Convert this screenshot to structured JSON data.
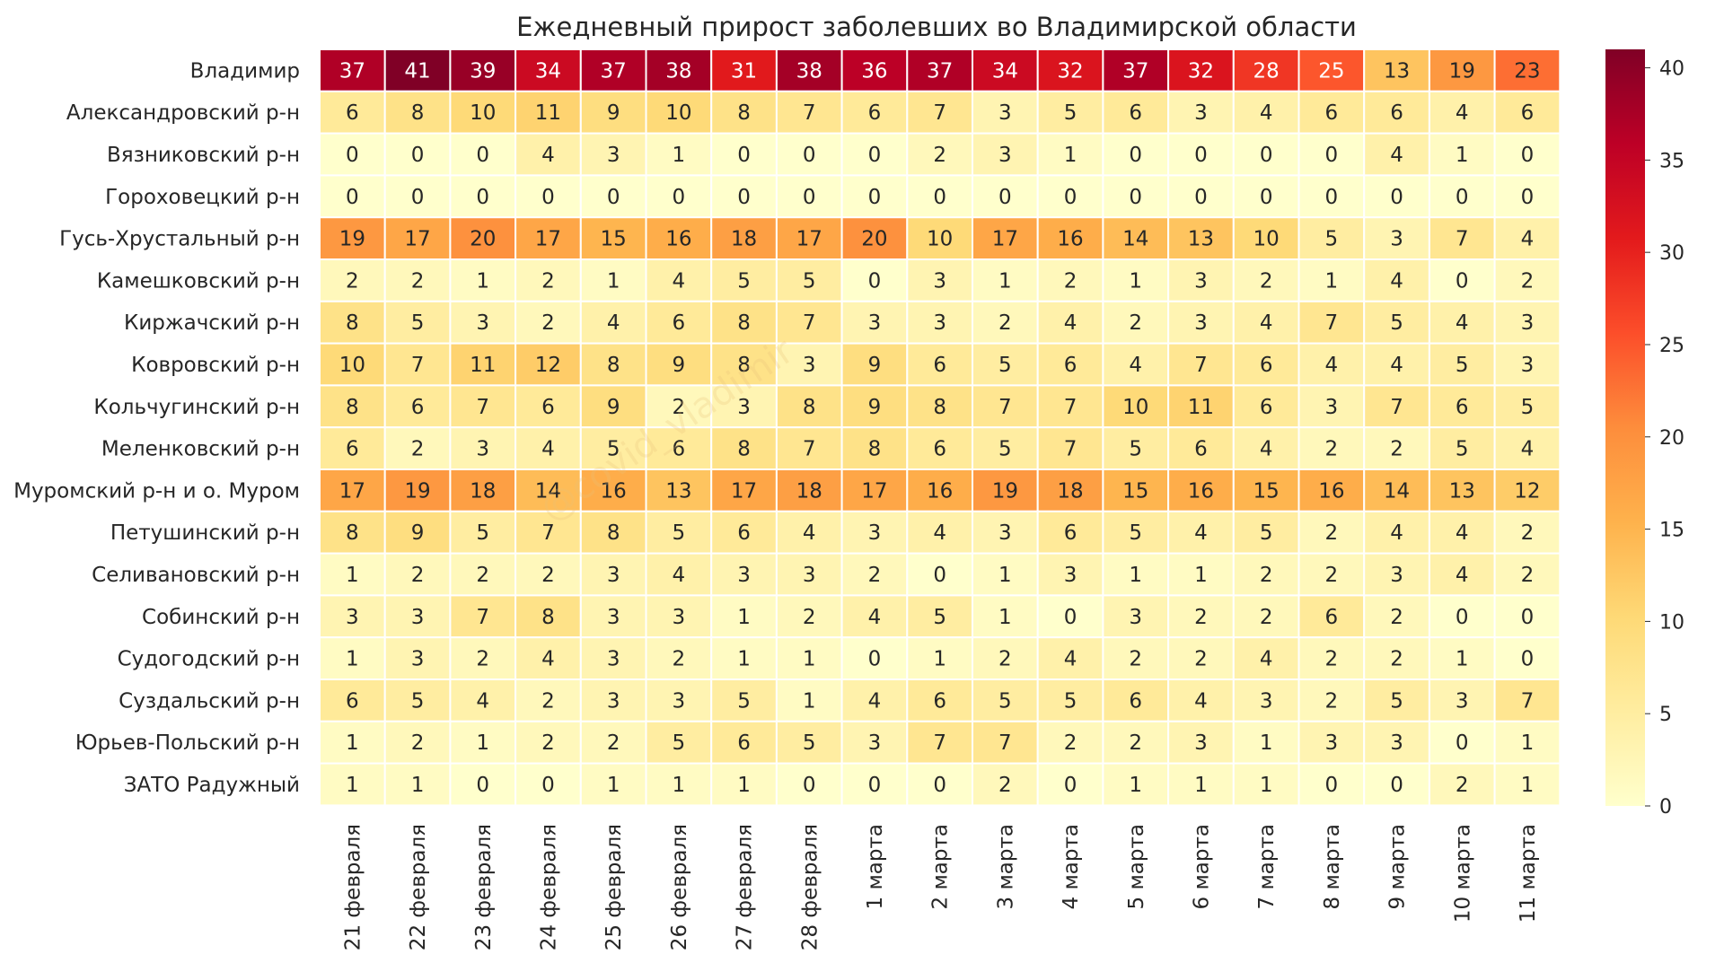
{
  "chart_data": {
    "type": "heatmap",
    "title": "Ежедневный прирост заболевших во Владимирской области",
    "rows": [
      "Владимир",
      "Александровский р-н",
      "Вязниковский р-н",
      "Гороховецкий р-н",
      "Гусь-Хрустальный р-н",
      "Камешковский р-н",
      "Киржачский р-н",
      "Ковровский р-н",
      "Кольчугинский р-н",
      "Меленковский р-н",
      "Муромский р-н и о. Муром",
      "Петушинский р-н",
      "Селивановский р-н",
      "Собинский р-н",
      "Судогодский р-н",
      "Суздальский р-н",
      "Юрьев-Польский р-н",
      "ЗАТО Радужный"
    ],
    "columns": [
      "21 февраля",
      "22 февраля",
      "23 февраля",
      "24 февраля",
      "25 февраля",
      "26 февраля",
      "27 февраля",
      "28 февраля",
      "1 марта",
      "2 марта",
      "3 марта",
      "4 марта",
      "5 марта",
      "6 марта",
      "7 марта",
      "8 марта",
      "9 марта",
      "10 марта",
      "11 марта"
    ],
    "values": [
      [
        37,
        41,
        39,
        34,
        37,
        38,
        31,
        38,
        36,
        37,
        34,
        32,
        37,
        32,
        28,
        25,
        13,
        19,
        23
      ],
      [
        6,
        8,
        10,
        11,
        9,
        10,
        8,
        7,
        6,
        7,
        3,
        5,
        6,
        3,
        4,
        6,
        6,
        4,
        6
      ],
      [
        0,
        0,
        0,
        4,
        3,
        1,
        0,
        0,
        0,
        2,
        3,
        1,
        0,
        0,
        0,
        0,
        4,
        1,
        0
      ],
      [
        0,
        0,
        0,
        0,
        0,
        0,
        0,
        0,
        0,
        0,
        0,
        0,
        0,
        0,
        0,
        0,
        0,
        0,
        0
      ],
      [
        19,
        17,
        20,
        17,
        15,
        16,
        18,
        17,
        20,
        10,
        17,
        16,
        14,
        13,
        10,
        5,
        3,
        7,
        4
      ],
      [
        2,
        2,
        1,
        2,
        1,
        4,
        5,
        5,
        0,
        3,
        1,
        2,
        1,
        3,
        2,
        1,
        4,
        0,
        2
      ],
      [
        8,
        5,
        3,
        2,
        4,
        6,
        8,
        7,
        3,
        3,
        2,
        4,
        2,
        3,
        4,
        7,
        5,
        4,
        3
      ],
      [
        10,
        7,
        11,
        12,
        8,
        9,
        8,
        3,
        9,
        6,
        5,
        6,
        4,
        7,
        6,
        4,
        4,
        5,
        3
      ],
      [
        8,
        6,
        7,
        6,
        9,
        2,
        3,
        8,
        9,
        8,
        7,
        7,
        10,
        11,
        6,
        3,
        7,
        6,
        5
      ],
      [
        6,
        2,
        3,
        4,
        5,
        6,
        8,
        7,
        8,
        6,
        5,
        7,
        5,
        6,
        4,
        2,
        2,
        5,
        4
      ],
      [
        17,
        19,
        18,
        14,
        16,
        13,
        17,
        18,
        17,
        16,
        19,
        18,
        15,
        16,
        15,
        16,
        14,
        13,
        12
      ],
      [
        8,
        9,
        5,
        7,
        8,
        5,
        6,
        4,
        3,
        4,
        3,
        6,
        5,
        4,
        5,
        2,
        4,
        4,
        2
      ],
      [
        1,
        2,
        2,
        2,
        3,
        4,
        3,
        3,
        2,
        0,
        1,
        3,
        1,
        1,
        2,
        2,
        3,
        4,
        2
      ],
      [
        3,
        3,
        7,
        8,
        3,
        3,
        1,
        2,
        4,
        5,
        1,
        0,
        3,
        2,
        2,
        6,
        2,
        0,
        0
      ],
      [
        1,
        3,
        2,
        4,
        3,
        2,
        1,
        1,
        0,
        1,
        2,
        4,
        2,
        2,
        4,
        2,
        2,
        1,
        0
      ],
      [
        6,
        5,
        4,
        2,
        3,
        3,
        5,
        1,
        4,
        6,
        5,
        5,
        6,
        4,
        3,
        2,
        5,
        3,
        7
      ],
      [
        1,
        2,
        1,
        2,
        2,
        5,
        6,
        5,
        3,
        7,
        7,
        2,
        2,
        3,
        1,
        3,
        3,
        0,
        1
      ],
      [
        1,
        1,
        0,
        0,
        1,
        1,
        1,
        0,
        0,
        0,
        2,
        0,
        1,
        1,
        1,
        0,
        0,
        2,
        1
      ]
    ],
    "colorbar": {
      "min": 0,
      "max": 41,
      "ticks": [
        0,
        5,
        10,
        15,
        20,
        25,
        30,
        35,
        40
      ],
      "colormap": "YlOrRd"
    },
    "annotations": "cell values",
    "watermark": "@covid_vladimir",
    "grid": false
  }
}
